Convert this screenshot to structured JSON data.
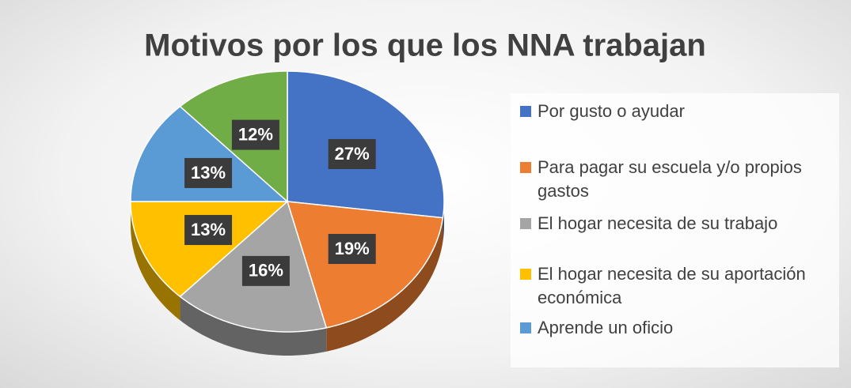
{
  "chart_data": {
    "type": "pie",
    "title": "Motivos por los que los NNA trabajan",
    "categories": [
      "Por gusto o ayudar",
      "Para pagar su escuela y/o propios gastos",
      "El hogar necesita de su trabajo",
      "El hogar necesita de su aportación económica",
      "Aprende un oficio",
      null
    ],
    "values": [
      27,
      19,
      16,
      13,
      13,
      12
    ],
    "value_labels": [
      "27%",
      "19%",
      "16%",
      "13%",
      "13%",
      "12%"
    ],
    "colors": [
      "#4472c4",
      "#ed7d31",
      "#a5a5a5",
      "#ffc000",
      "#5b9bd5",
      "#70ad47"
    ],
    "legend": "right"
  }
}
